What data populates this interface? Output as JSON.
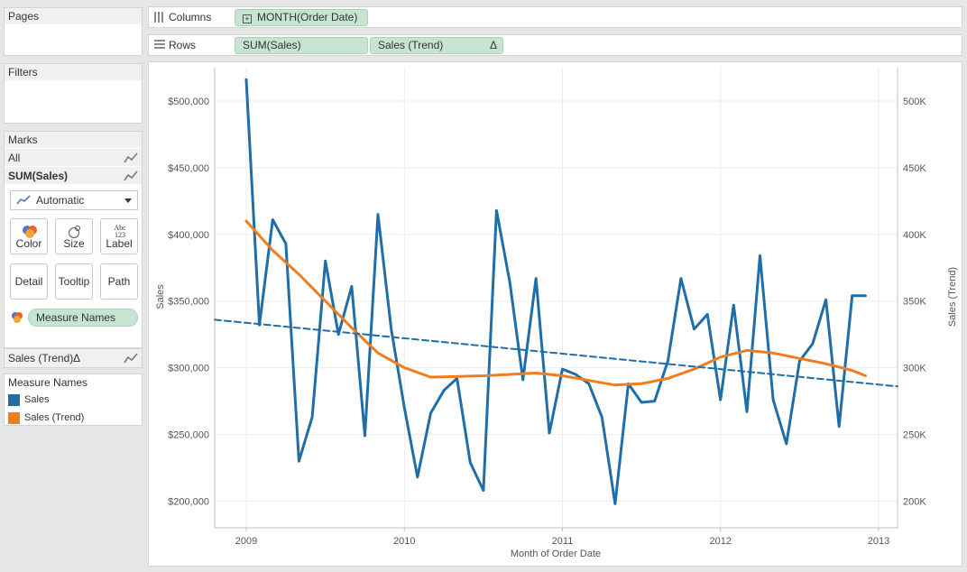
{
  "sidebar": {
    "pages_title": "Pages",
    "filters_title": "Filters",
    "marks": {
      "title": "Marks",
      "all_label": "All",
      "sum_label": "SUM(Sales)",
      "mark_type": "Automatic",
      "buttons": {
        "color": "Color",
        "size": "Size",
        "label": "Label",
        "label_icon": "Abc\n123",
        "detail": "Detail",
        "tooltip": "Tooltip",
        "path": "Path"
      },
      "color_field": "Measure Names",
      "trend_label": "Sales (Trend)",
      "trend_delta": "Δ"
    },
    "legend": {
      "title": "Measure Names",
      "items": [
        {
          "label": "Sales",
          "color": "#1f6ea8"
        },
        {
          "label": "Sales (Trend)",
          "color": "#f07d1e"
        }
      ]
    }
  },
  "shelves": {
    "columns_label": "Columns",
    "columns_pill": "MONTH(Order Date)",
    "rows_label": "Rows",
    "rows_pill_1": "SUM(Sales)",
    "rows_pill_2": "Sales (Trend)",
    "rows_pill_2_delta": "Δ"
  },
  "chart_data": {
    "type": "line",
    "xlabel": "Month of Order Date",
    "ylabel_left": "Sales",
    "ylabel_right": "Sales (Trend)",
    "x_ticks": [
      "2009",
      "2010",
      "2011",
      "2012",
      "2013"
    ],
    "y_ticks_left": [
      "$200,000",
      "$250,000",
      "$300,000",
      "$350,000",
      "$400,000",
      "$450,000",
      "$500,000"
    ],
    "y_ticks_right": [
      "200K",
      "250K",
      "300K",
      "350K",
      "400K",
      "450K",
      "500K"
    ],
    "ylim": [
      180000,
      525000
    ],
    "xlim": [
      2008.8,
      2013.12
    ],
    "grid": true,
    "series": [
      {
        "name": "Sales",
        "color": "#1f6ea8",
        "x": [
          2009.0,
          2009.083,
          2009.167,
          2009.25,
          2009.333,
          2009.417,
          2009.5,
          2009.583,
          2009.667,
          2009.75,
          2009.833,
          2009.917,
          2010.0,
          2010.083,
          2010.167,
          2010.25,
          2010.333,
          2010.417,
          2010.5,
          2010.583,
          2010.667,
          2010.75,
          2010.833,
          2010.917,
          2011.0,
          2011.083,
          2011.167,
          2011.25,
          2011.333,
          2011.417,
          2011.5,
          2011.583,
          2011.667,
          2011.75,
          2011.833,
          2011.917,
          2012.0,
          2012.083,
          2012.167,
          2012.25,
          2012.333,
          2012.417,
          2012.5,
          2012.583,
          2012.667,
          2012.75,
          2012.833,
          2012.917
        ],
        "values": [
          516000,
          332000,
          411000,
          393000,
          230000,
          263000,
          380000,
          325000,
          361000,
          249000,
          415000,
          329000,
          270000,
          218000,
          266000,
          283000,
          292000,
          229000,
          208000,
          418000,
          364000,
          291000,
          367000,
          251000,
          299000,
          295000,
          288000,
          263000,
          198000,
          288000,
          274000,
          275000,
          305000,
          367000,
          329000,
          340000,
          276000,
          347000,
          267000,
          384000,
          276000,
          243000,
          305000,
          318000,
          351000,
          256000,
          354000,
          354000
        ]
      },
      {
        "name": "Sales (Trend)",
        "color": "#f07d1e",
        "x": [
          2009.0,
          2009.167,
          2009.333,
          2009.5,
          2009.667,
          2009.833,
          2010.0,
          2010.167,
          2010.5,
          2010.833,
          2011.0,
          2011.333,
          2011.5,
          2011.667,
          2011.833,
          2012.0,
          2012.167,
          2012.333,
          2012.5,
          2012.667,
          2012.833,
          2012.917
        ],
        "values": [
          410000,
          388000,
          370000,
          350000,
          330000,
          311000,
          300000,
          293000,
          294000,
          296000,
          294000,
          287000,
          288000,
          292000,
          299000,
          308000,
          313000,
          311000,
          307000,
          303000,
          298000,
          294000
        ]
      },
      {
        "name": "Trend Line",
        "color": "#1f6ea8",
        "dashed": true,
        "x": [
          2008.8,
          2013.12
        ],
        "values": [
          336000,
          286000
        ]
      }
    ]
  }
}
